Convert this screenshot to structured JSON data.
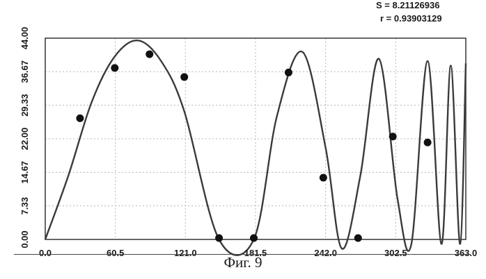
{
  "stats": {
    "s_text": "S = 8.21126936",
    "r_text": "r = 0.93903129"
  },
  "caption": "Фиг. 9",
  "chart_data": {
    "type": "scatter",
    "title": "",
    "xlabel": "",
    "ylabel": "",
    "xlim": [
      0.0,
      363.0
    ],
    "ylim": [
      0.0,
      44.0
    ],
    "x_ticks": [
      "0.0",
      "60.5",
      "121.0",
      "181.5",
      "242.0",
      "302.5",
      "363.0"
    ],
    "y_ticks": [
      "0.00",
      "7.33",
      "14.67",
      "22.00",
      "29.33",
      "36.67",
      "44.00"
    ],
    "grid": true,
    "series": [
      {
        "kind": "points",
        "x": [
          30,
          60,
          90,
          120,
          150,
          180,
          210,
          240,
          270,
          300,
          330
        ],
        "y": [
          26.5,
          37.5,
          40.5,
          35.5,
          0.3,
          0.3,
          36.5,
          13.5,
          0.3,
          22.5,
          21.2
        ]
      },
      {
        "kind": "fit-curve",
        "x": [
          0,
          20,
          40,
          60,
          80,
          100,
          120,
          150,
          180,
          200,
          222,
          242,
          256,
          272,
          288,
          304,
          316,
          330,
          342,
          350,
          358,
          363
        ],
        "y": [
          0,
          14,
          30,
          40,
          43.5,
          39,
          28,
          0,
          0,
          27,
          41,
          20,
          -2,
          14,
          39.5,
          9,
          -1,
          39,
          -1,
          38,
          -1,
          38.5
        ]
      }
    ],
    "colors": {
      "curve": "#3a3a3a",
      "points": "#111111",
      "grid": "#b5b5b5",
      "frame": "#333333"
    }
  }
}
